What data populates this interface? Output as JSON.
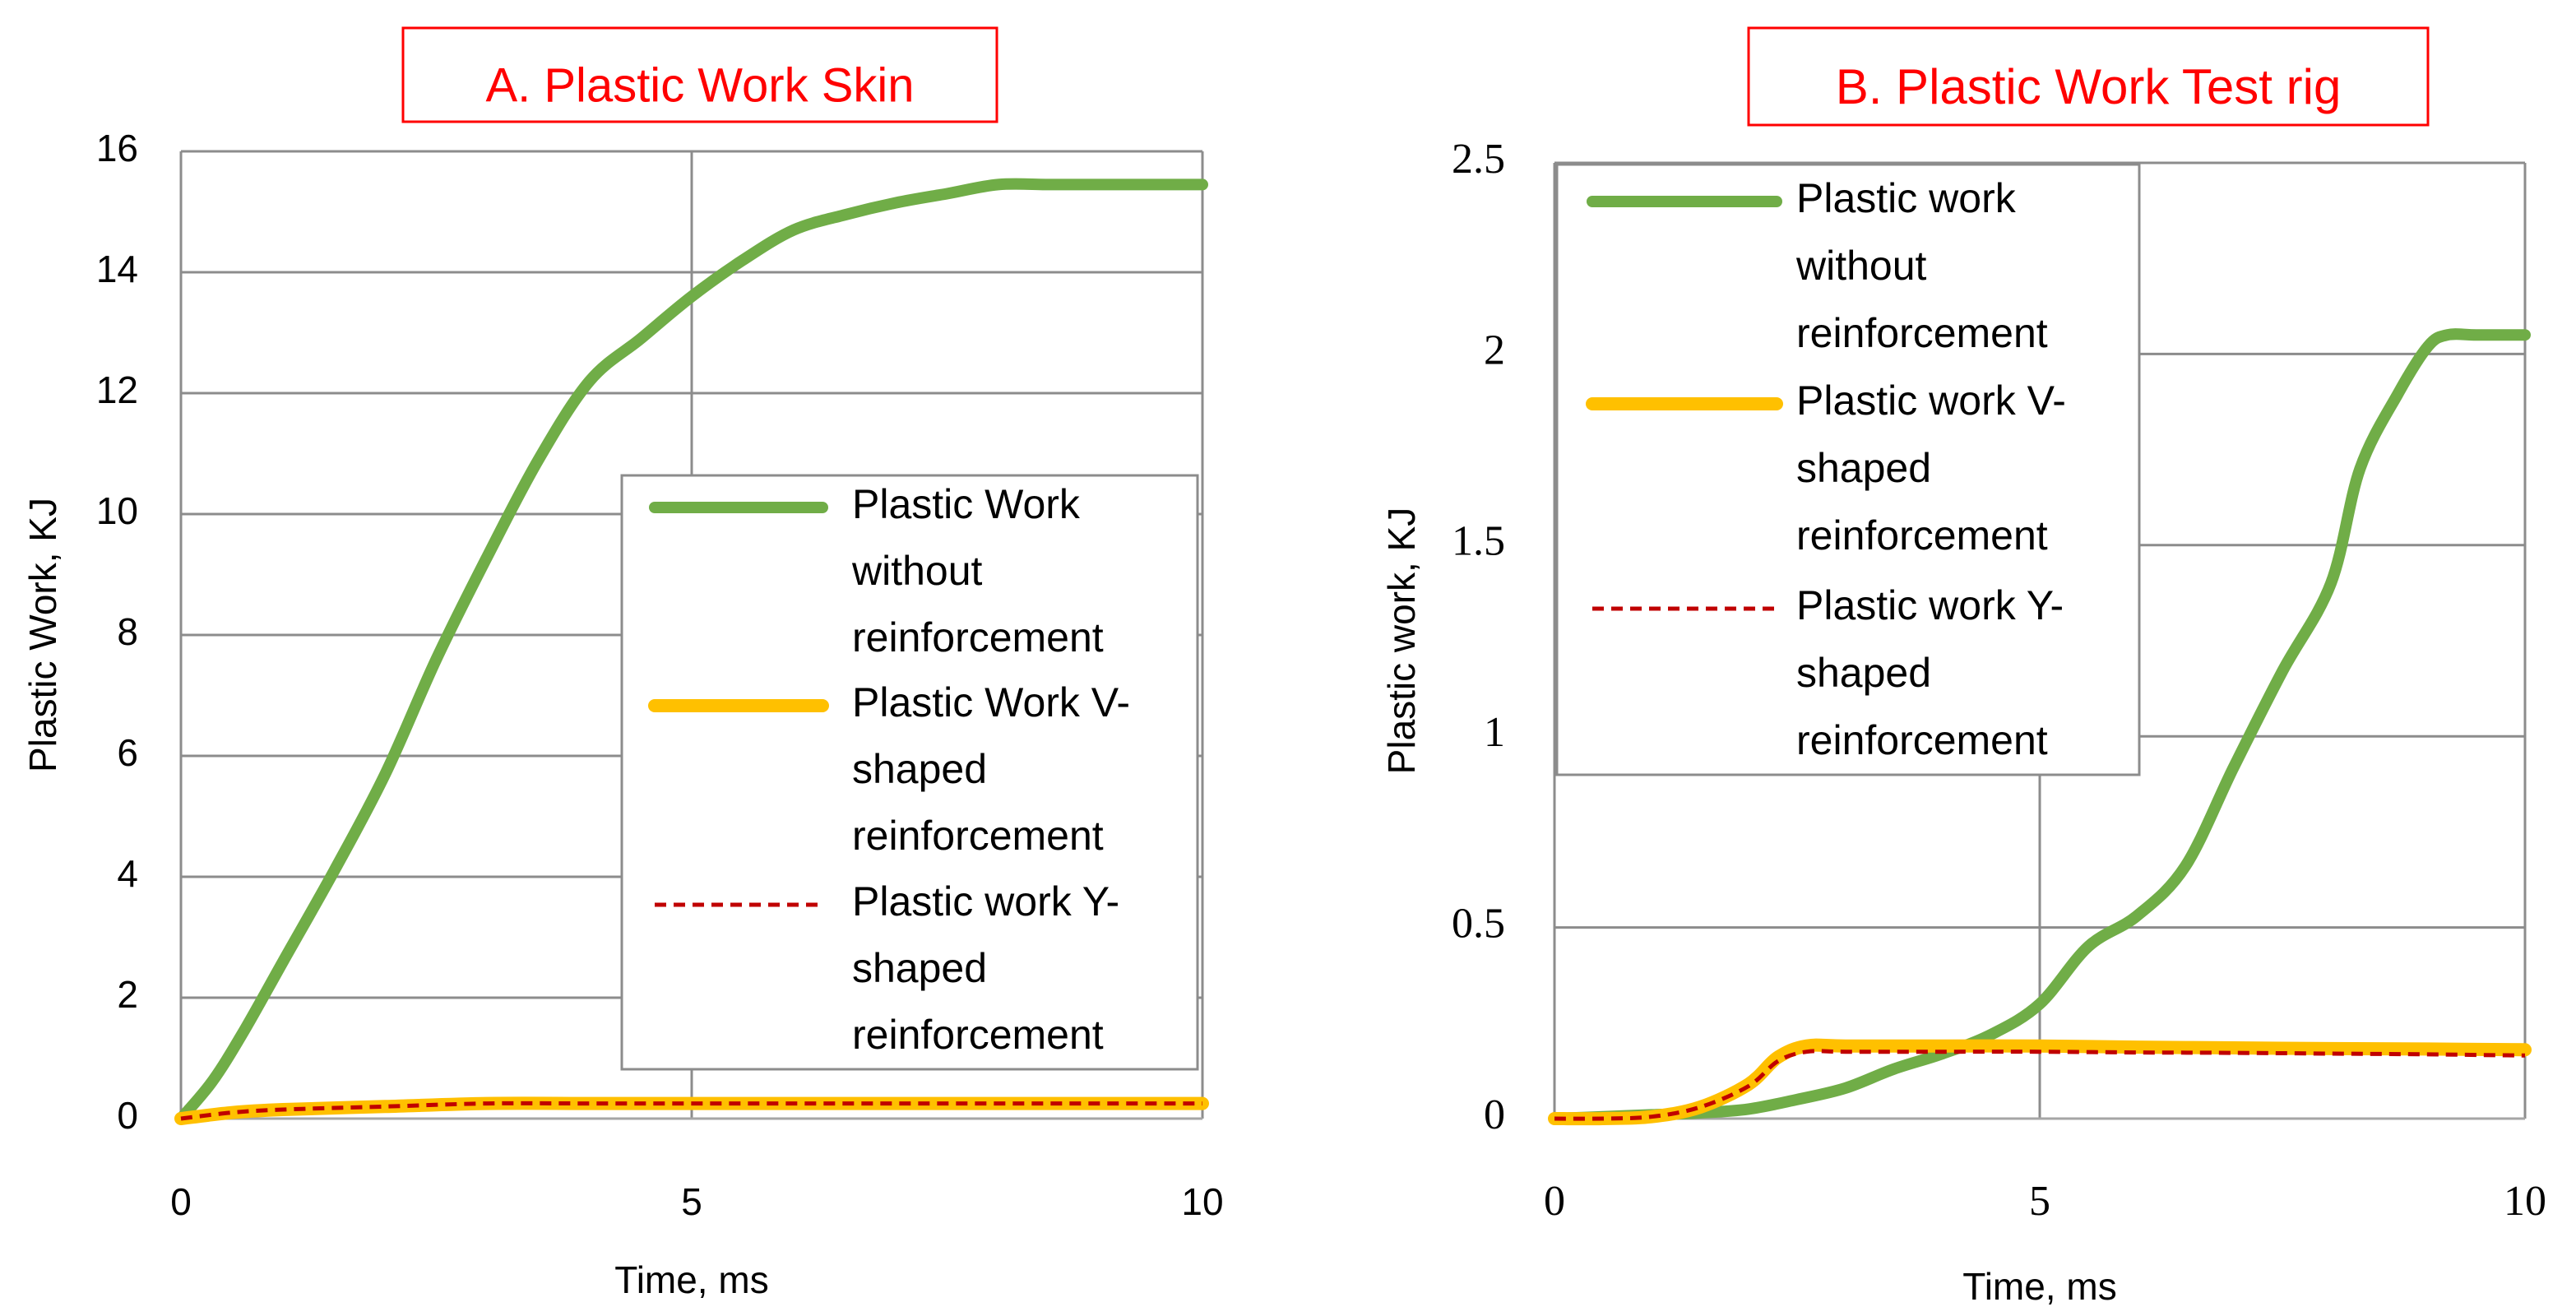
{
  "chart_data": [
    {
      "type": "line",
      "title": "A. Plastic Work Skin",
      "xlabel": "Time, ms",
      "ylabel": "Plastic Work, KJ",
      "xlim": [
        0,
        10
      ],
      "ylim": [
        0,
        16
      ],
      "xticks": [
        "0",
        "5",
        "10"
      ],
      "yticks": [
        "0",
        "2",
        "4",
        "6",
        "8",
        "10",
        "12",
        "14",
        "16"
      ],
      "grid": true,
      "legend_position": "center-right",
      "series": [
        {
          "name": "Plastic Work without reinforcement",
          "color": "#70ad47",
          "style": "solid-thick",
          "x": [
            0,
            0.3,
            0.6,
            1.0,
            1.5,
            2.0,
            2.5,
            3.0,
            3.5,
            4.0,
            4.5,
            5.0,
            5.5,
            6.0,
            6.5,
            7.0,
            7.5,
            8.0,
            8.5,
            9.0,
            9.5,
            10.0
          ],
          "y": [
            0,
            0.6,
            1.4,
            2.6,
            4.1,
            5.7,
            7.6,
            9.3,
            10.9,
            12.2,
            12.9,
            13.6,
            14.2,
            14.7,
            14.95,
            15.15,
            15.3,
            15.45,
            15.45,
            15.45,
            15.45,
            15.45
          ]
        },
        {
          "name": "Plastic Work V-shaped reinforcement",
          "color": "#ffc000",
          "style": "solid-thick",
          "x": [
            0,
            0.5,
            1,
            2,
            3,
            4,
            5,
            6,
            7,
            8,
            9,
            10
          ],
          "y": [
            0,
            0.1,
            0.15,
            0.2,
            0.25,
            0.25,
            0.25,
            0.25,
            0.25,
            0.25,
            0.25,
            0.25
          ]
        },
        {
          "name": "Plastic work Y-shaped reinforcement",
          "color": "#c00000",
          "style": "dashed",
          "x": [
            0,
            0.5,
            1,
            2,
            3,
            4,
            5,
            6,
            7,
            8,
            9,
            10
          ],
          "y": [
            0,
            0.1,
            0.15,
            0.2,
            0.25,
            0.25,
            0.25,
            0.25,
            0.25,
            0.25,
            0.25,
            0.25
          ]
        }
      ]
    },
    {
      "type": "line",
      "title": "B. Plastic Work Test rig",
      "xlabel": "Time, ms",
      "ylabel": "Plastic work, KJ",
      "xlim": [
        0,
        10
      ],
      "ylim": [
        0,
        2.5
      ],
      "xticks": [
        "0",
        "5",
        "10"
      ],
      "yticks": [
        "0",
        "0.5",
        "1",
        "1.5",
        "2",
        "2.5"
      ],
      "grid": true,
      "legend_position": "top-left",
      "series": [
        {
          "name": "Plastic work without reinforcement",
          "color": "#70ad47",
          "style": "solid-thick",
          "x": [
            0,
            0.5,
            1.0,
            1.5,
            2.0,
            2.5,
            3.0,
            3.5,
            4.0,
            4.5,
            5.0,
            5.5,
            6.0,
            6.5,
            7.0,
            7.5,
            8.0,
            8.3,
            8.7,
            9.0,
            9.2,
            9.5,
            10.0
          ],
          "y": [
            0,
            0.005,
            0.01,
            0.015,
            0.025,
            0.05,
            0.08,
            0.13,
            0.17,
            0.22,
            0.3,
            0.45,
            0.53,
            0.66,
            0.92,
            1.17,
            1.4,
            1.7,
            1.9,
            2.02,
            2.05,
            2.05,
            2.05
          ]
        },
        {
          "name": "Plastic work V-shaped reinforcement",
          "color": "#ffc000",
          "style": "solid-thick",
          "x": [
            0,
            0.5,
            1.0,
            1.5,
            2.0,
            2.3,
            2.6,
            3.0,
            4.0,
            5.0,
            6.0,
            7.0,
            8.0,
            9.0,
            10.0
          ],
          "y": [
            0,
            0,
            0.005,
            0.03,
            0.09,
            0.16,
            0.19,
            0.19,
            0.19,
            0.19,
            0.187,
            0.185,
            0.183,
            0.182,
            0.18
          ]
        },
        {
          "name": "Plastic work Y-shaped reinforcement",
          "color": "#c00000",
          "style": "dashed",
          "x": [
            0,
            0.5,
            1.0,
            1.5,
            2.0,
            2.3,
            2.6,
            3.0,
            4.0,
            5.0,
            6.0,
            7.0,
            8.0,
            9.0,
            10.0
          ],
          "y": [
            0,
            0,
            0.005,
            0.03,
            0.085,
            0.15,
            0.175,
            0.175,
            0.175,
            0.175,
            0.173,
            0.172,
            0.17,
            0.168,
            0.165
          ]
        }
      ]
    }
  ]
}
